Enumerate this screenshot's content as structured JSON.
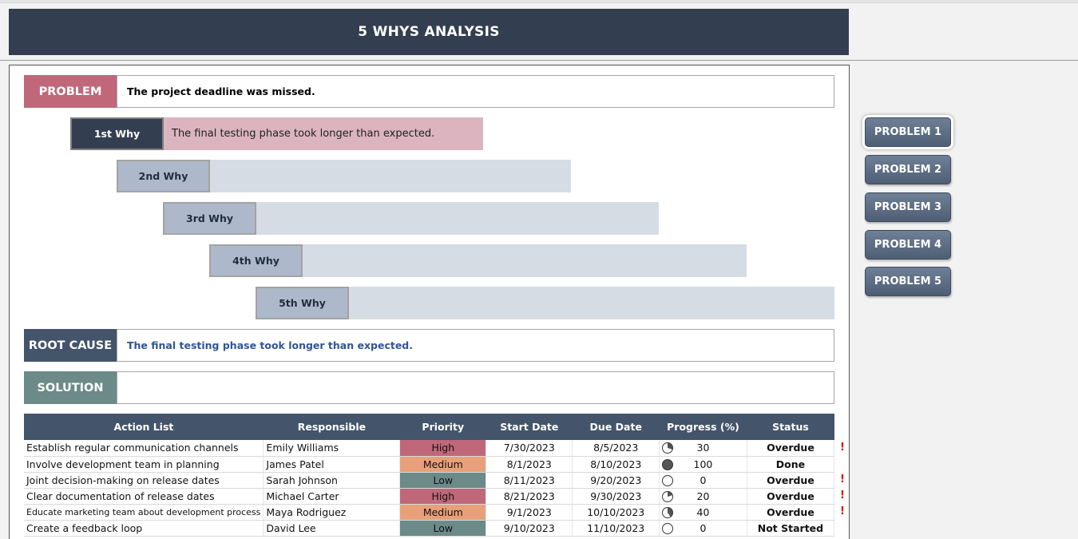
{
  "title": "5 WHYS ANALYSIS",
  "problem": {
    "label": "PROBLEM",
    "text": "The project deadline was missed.",
    "color": "#c0687a"
  },
  "whys": [
    {
      "label": "1st Why",
      "text": "The final testing phase took longer than expected."
    },
    {
      "label": "2nd Why",
      "text": ""
    },
    {
      "label": "3rd Why",
      "text": ""
    },
    {
      "label": "4th Why",
      "text": ""
    },
    {
      "label": "5th Why",
      "text": ""
    }
  ],
  "root_cause": {
    "label": "ROOT CAUSE",
    "text": "The final testing phase took longer than expected.",
    "color": "#44546a"
  },
  "solution": {
    "label": "SOLUTION",
    "text": "",
    "color": "#6b8a88"
  },
  "sidebar": {
    "buttons": [
      "PROBLEM 1",
      "PROBLEM 2",
      "PROBLEM 3",
      "PROBLEM 4",
      "PROBLEM 5"
    ],
    "active": 0
  },
  "table": {
    "headers": [
      "Action List",
      "Responsible",
      "Priority",
      "Start Date",
      "Due Date",
      "Progress (%)",
      "Status"
    ],
    "priority_colors": {
      "High": "#c0687a",
      "Medium": "#e8a07a",
      "Low": "#6b8a88"
    },
    "rows": [
      {
        "action": "Establish regular communication channels",
        "responsible": "Emily Williams",
        "priority": "High",
        "start": "7/30/2023",
        "due": "8/5/2023",
        "progress": "30",
        "status": "Overdue",
        "flag": "!"
      },
      {
        "action": "Involve development team in planning",
        "responsible": "James Patel",
        "priority": "Medium",
        "start": "8/1/2023",
        "due": "8/10/2023",
        "progress": "100",
        "status": "Done",
        "flag": ""
      },
      {
        "action": "Joint decision-making on release dates",
        "responsible": "Sarah Johnson",
        "priority": "Low",
        "start": "8/11/2023",
        "due": "9/20/2023",
        "progress": "0",
        "status": "Overdue",
        "flag": "!"
      },
      {
        "action": "Clear documentation of release dates",
        "responsible": "Michael Carter",
        "priority": "High",
        "start": "8/21/2023",
        "due": "9/30/2023",
        "progress": "20",
        "status": "Overdue",
        "flag": "!"
      },
      {
        "action": "Educate marketing team about development process",
        "responsible": "Maya Rodriguez",
        "priority": "Medium",
        "start": "9/1/2023",
        "due": "10/10/2023",
        "progress": "40",
        "status": "Overdue",
        "flag": "!"
      },
      {
        "action": "Create a feedback loop",
        "responsible": "David Lee",
        "priority": "Low",
        "start": "9/10/2023",
        "due": "11/10/2023",
        "progress": "0",
        "status": "Not Started",
        "flag": ""
      }
    ]
  }
}
